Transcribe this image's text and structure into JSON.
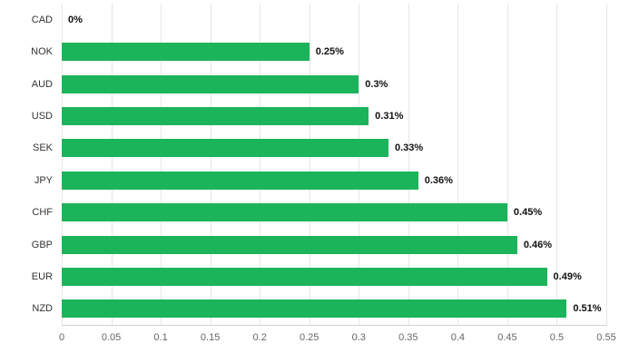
{
  "chart_data": {
    "type": "bar",
    "orientation": "horizontal",
    "title": "",
    "xlabel": "",
    "ylabel": "",
    "grid": true,
    "legend": "none",
    "bar_color": "#1cb45a",
    "categories": [
      "CAD",
      "NOK",
      "AUD",
      "USD",
      "SEK",
      "JPY",
      "CHF",
      "GBP",
      "EUR",
      "NZD"
    ],
    "values": [
      0,
      0.25,
      0.3,
      0.31,
      0.33,
      0.36,
      0.45,
      0.46,
      0.49,
      0.51
    ],
    "value_labels": [
      "0%",
      "0.25%",
      "0.3%",
      "0.31%",
      "0.33%",
      "0.36%",
      "0.45%",
      "0.46%",
      "0.49%",
      "0.51%"
    ],
    "xlim": [
      0,
      0.55
    ],
    "x_ticks": [
      0,
      0.05,
      0.1,
      0.15,
      0.2,
      0.25,
      0.3,
      0.35,
      0.4,
      0.45,
      0.5,
      0.55
    ],
    "x_tick_labels": [
      "0",
      "0.05",
      "0.1",
      "0.15",
      "0.2",
      "0.25",
      "0.3",
      "0.35",
      "0.4",
      "0.45",
      "0.5",
      "0.55"
    ]
  }
}
